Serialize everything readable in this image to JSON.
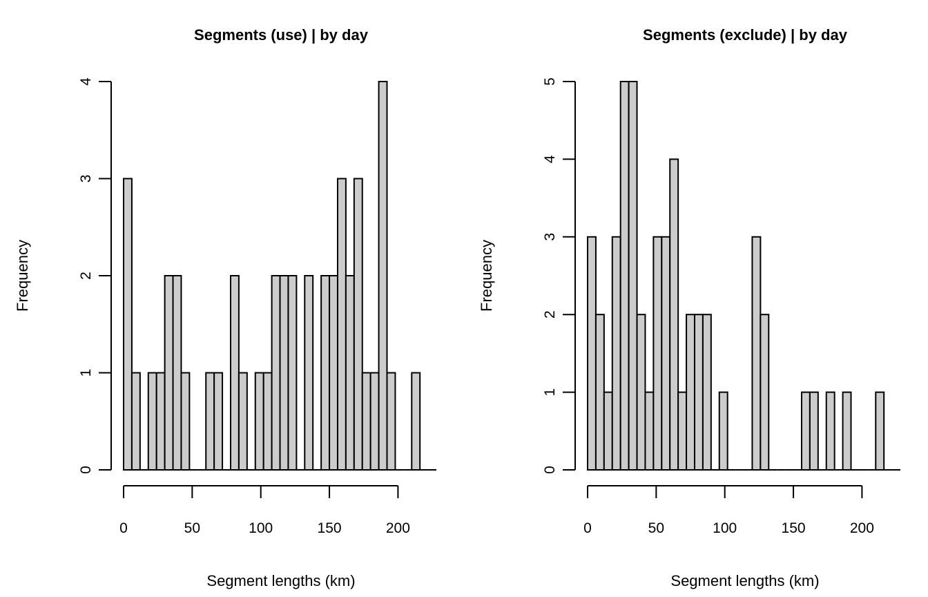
{
  "chart_data": [
    {
      "type": "bar",
      "title": "Segments (use) |  by day",
      "xlabel": "Segment lengths (km)",
      "ylabel": "Frequency",
      "bin_width": 6,
      "bins_start": 0,
      "values": [
        3,
        1,
        0,
        1,
        1,
        2,
        2,
        1,
        0,
        0,
        1,
        1,
        0,
        2,
        1,
        0,
        1,
        1,
        2,
        2,
        2,
        0,
        2,
        0,
        2,
        2,
        3,
        2,
        3,
        1,
        1,
        4,
        1,
        0,
        0,
        1,
        0,
        0
      ],
      "xlim": [
        0,
        228
      ],
      "ylim": [
        0,
        4
      ],
      "xticks": [
        0,
        50,
        100,
        150,
        200
      ],
      "yticks": [
        0,
        1,
        2,
        3,
        4
      ],
      "xtick_labels": [
        "0",
        "50",
        "100",
        "150",
        "200"
      ],
      "ytick_labels": [
        "0",
        "1",
        "2",
        "3",
        "4"
      ],
      "grid": false
    },
    {
      "type": "bar",
      "title": "Segments (exclude) |  by day",
      "xlabel": "Segment lengths (km)",
      "ylabel": "Frequency",
      "bin_width": 6,
      "bins_start": 0,
      "values": [
        3,
        2,
        1,
        3,
        5,
        5,
        2,
        1,
        3,
        3,
        4,
        1,
        2,
        2,
        2,
        0,
        1,
        0,
        0,
        0,
        3,
        2,
        0,
        0,
        0,
        0,
        1,
        1,
        0,
        1,
        0,
        1,
        0,
        0,
        0,
        1,
        0,
        0
      ],
      "xlim": [
        0,
        228
      ],
      "ylim": [
        0,
        5
      ],
      "xticks": [
        0,
        50,
        100,
        150,
        200
      ],
      "yticks": [
        0,
        1,
        2,
        3,
        4,
        5
      ],
      "xtick_labels": [
        "0",
        "50",
        "100",
        "150",
        "200"
      ],
      "ytick_labels": [
        "0",
        "1",
        "2",
        "3",
        "4",
        "5"
      ],
      "grid": false
    }
  ]
}
